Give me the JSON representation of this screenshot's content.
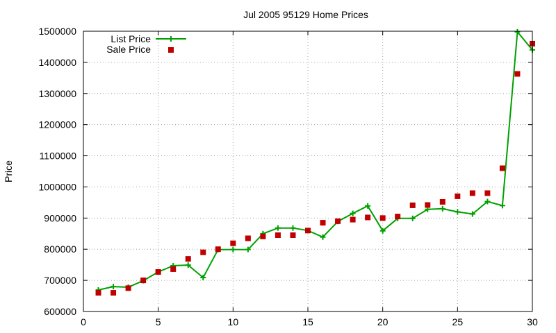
{
  "chart_data": {
    "type": "line",
    "title": "Jul 2005 95129 Home Prices",
    "xlabel": "",
    "ylabel": "Price",
    "xlim": [
      0,
      30
    ],
    "ylim": [
      600000,
      1500000
    ],
    "xticks": [
      0,
      5,
      10,
      15,
      20,
      25,
      30
    ],
    "yticks": [
      600000,
      700000,
      800000,
      900000,
      1000000,
      1100000,
      1200000,
      1300000,
      1400000,
      1500000
    ],
    "grid": true,
    "legend_position": "top-left",
    "series": [
      {
        "name": "List Price",
        "style": "line+cross",
        "color": "#00a000",
        "x": [
          1,
          2,
          3,
          4,
          5,
          6,
          7,
          8,
          9,
          10,
          11,
          12,
          13,
          14,
          15,
          16,
          17,
          18,
          19,
          20,
          21,
          22,
          23,
          24,
          25,
          26,
          27,
          28,
          29,
          30
        ],
        "values": [
          669000,
          680000,
          678000,
          699000,
          727000,
          747000,
          749000,
          709000,
          799000,
          799000,
          799000,
          850000,
          868000,
          868000,
          860000,
          839000,
          889000,
          915000,
          939000,
          859000,
          899000,
          899000,
          928000,
          930000,
          920000,
          913000,
          953000,
          940000,
          1498000,
          1440000
        ]
      },
      {
        "name": "Sale Price",
        "style": "square-markers",
        "color": "#c00000",
        "x": [
          1,
          2,
          3,
          4,
          5,
          6,
          7,
          8,
          9,
          10,
          11,
          12,
          13,
          14,
          15,
          16,
          17,
          18,
          19,
          20,
          21,
          22,
          23,
          24,
          25,
          26,
          27,
          28,
          29,
          30
        ],
        "values": [
          660000,
          660000,
          675000,
          700000,
          727000,
          736000,
          769000,
          790000,
          800000,
          819000,
          835000,
          841000,
          845000,
          845000,
          860000,
          885000,
          890000,
          895000,
          902000,
          900000,
          905000,
          941000,
          942000,
          952000,
          970000,
          980000,
          980000,
          1060000,
          1363000,
          1460000
        ]
      }
    ]
  }
}
